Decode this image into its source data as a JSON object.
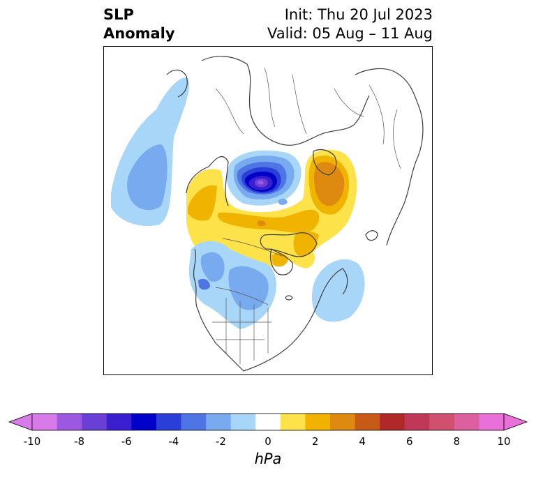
{
  "header": {
    "title_line1": "SLP",
    "title_line2": "Anomaly",
    "init_text": "Init: Thu 20 Jul 2023",
    "valid_text": "Valid: 05 Aug – 11 Aug"
  },
  "colorbar": {
    "unit": "hPa",
    "tick_labels": [
      "-10",
      "-8",
      "-6",
      "-4",
      "-2",
      "0",
      "2",
      "4",
      "6",
      "8",
      "10"
    ],
    "levels": [
      -10,
      -9,
      -8,
      -7,
      -6,
      -5,
      -4,
      -3,
      -2,
      -1,
      1,
      2,
      3,
      4,
      5,
      6,
      7,
      8,
      9,
      10
    ],
    "colors": [
      "#d67be8",
      "#9b59e0",
      "#6a3fd6",
      "#3a1fd0",
      "#0000c8",
      "#2a3fd8",
      "#4f74e4",
      "#78aaf0",
      "#a8d6f8",
      "#ffffff",
      "#fde24a",
      "#f0b400",
      "#de8a10",
      "#c85a18",
      "#b02828",
      "#c03858",
      "#d05070",
      "#dc60a0",
      "#e870d8"
    ]
  },
  "map": {
    "projection": "polar stereographic (North America / Arctic)",
    "features": [
      "coastlines",
      "country borders",
      "US state borders",
      "Canadian provinces"
    ],
    "anomaly_centers": [
      {
        "label": "low",
        "region": "Arctic Ocean north of Greenland/Canada",
        "value": -9
      },
      {
        "label": "high",
        "region": "Barents/Kara Sea",
        "value": 4
      },
      {
        "label": "high",
        "region": "Siberia / Laptev Sea coast",
        "value": 3
      },
      {
        "label": "high",
        "region": "Chukchi / Beaufort / Alaska",
        "value": 2
      },
      {
        "label": "low",
        "region": "North Pacific",
        "value": -3
      },
      {
        "label": "low",
        "region": "Central Canada / Great Lakes",
        "value": -3
      },
      {
        "label": "low",
        "region": "Western North Atlantic",
        "value": -2
      }
    ]
  }
}
